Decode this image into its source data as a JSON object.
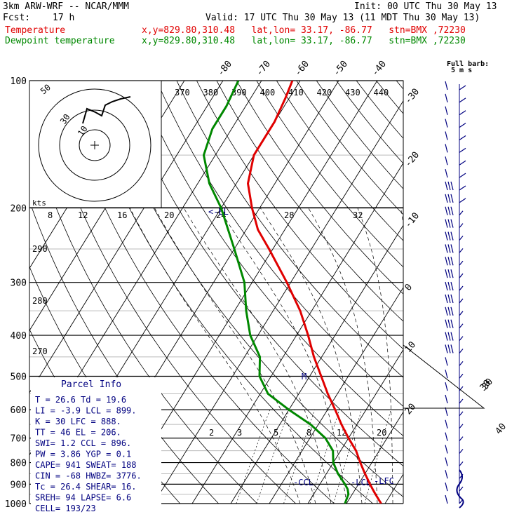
{
  "header": {
    "model": "3km ARW-WRF -- NCAR/MMM",
    "init": "Init: 00 UTC Thu 30 May 13",
    "fcst_label": "Fcst:",
    "fcst_value": "17 h",
    "valid": "Valid: 17 UTC Thu 30 May 13 (11 MDT Thu 30 May 13)",
    "temp_label": "Temperature",
    "dew_label": "Dewpoint temperature",
    "location": "x,y=829.80,310.48   lat,lon= 33.17, -86.77   stn=BMX ,72230",
    "barb_note_1": "Full barb:",
    "barb_note_2": "5 m s"
  },
  "colors": {
    "temperature": "#e00000",
    "dewpoint": "#008800",
    "wind": "#000080"
  },
  "chart_data": {
    "type": "line",
    "title": "",
    "y_axis": {
      "label": "",
      "scale": "log-p",
      "ticks": [
        100,
        200,
        300,
        400,
        500,
        600,
        700,
        800,
        900,
        1000
      ],
      "range": [
        1000,
        100
      ]
    },
    "isotherm_labels": [
      -80,
      -70,
      -60,
      -50,
      -40,
      -30,
      -20,
      -10,
      0,
      10,
      20,
      30,
      40
    ],
    "theta_e_labels": [
      370,
      380,
      390,
      400,
      410,
      420,
      430,
      440
    ],
    "inset_speed_labels": [
      8,
      12,
      16,
      20,
      24,
      28,
      32
    ],
    "inset_units": "kts",
    "hodograph_labels": [
      "50",
      "30",
      "10"
    ],
    "mixing_ratio_labels": [
      2,
      3,
      5,
      8,
      12,
      20
    ],
    "theta_labels": [
      290,
      280,
      270
    ],
    "series": [
      {
        "name": "Temperature",
        "points": [
          [
            1000,
            29
          ],
          [
            950,
            26
          ],
          [
            925,
            24.5
          ],
          [
            900,
            23
          ],
          [
            850,
            20
          ],
          [
            800,
            17
          ],
          [
            750,
            14
          ],
          [
            700,
            10
          ],
          [
            650,
            6
          ],
          [
            600,
            2
          ],
          [
            550,
            -2.5
          ],
          [
            500,
            -7
          ],
          [
            450,
            -12
          ],
          [
            400,
            -17
          ],
          [
            350,
            -23
          ],
          [
            300,
            -31
          ],
          [
            250,
            -41
          ],
          [
            225,
            -47
          ],
          [
            200,
            -52
          ],
          [
            175,
            -57
          ],
          [
            150,
            -60
          ],
          [
            125,
            -60
          ],
          [
            110,
            -61
          ],
          [
            100,
            -62
          ]
        ]
      },
      {
        "name": "Dewpoint temperature",
        "points": [
          [
            1000,
            19.6
          ],
          [
            950,
            19
          ],
          [
            925,
            18
          ],
          [
            900,
            16.5
          ],
          [
            850,
            13
          ],
          [
            800,
            10
          ],
          [
            750,
            8
          ],
          [
            700,
            4
          ],
          [
            650,
            -2
          ],
          [
            600,
            -10
          ],
          [
            550,
            -18
          ],
          [
            500,
            -23
          ],
          [
            450,
            -26
          ],
          [
            400,
            -32
          ],
          [
            350,
            -37
          ],
          [
            300,
            -42
          ],
          [
            250,
            -50
          ],
          [
            200,
            -60
          ],
          [
            175,
            -67
          ],
          [
            150,
            -73
          ],
          [
            130,
            -75
          ],
          [
            115,
            -75
          ],
          [
            100,
            -76
          ]
        ]
      }
    ],
    "markers": [
      "CCL",
      "LCL",
      "LFC",
      "M"
    ],
    "wind_barbs": {
      "count": 34,
      "label_30": "30",
      "label_40": "40"
    }
  },
  "parcel_info": {
    "title": "Parcel Info",
    "rows": [
      "T  =   26.6 Td =  19.6",
      "LI =   -3.9 LCL =  899.",
      "K  =     30 LFC =  888.",
      "TT =     46 EL  =  206.",
      "SWI=    1.2 CCL =  896.",
      "PW =   3.86 YGP =   0.1",
      "CAPE=   941 SWEAT=  188",
      "CIN =   -68 HWBZ= 3776.",
      "Tc =   26.4 SHEAR=  16.",
      "SREH=    94 LAPSE=  6.6",
      "CELL= 193/23"
    ]
  }
}
